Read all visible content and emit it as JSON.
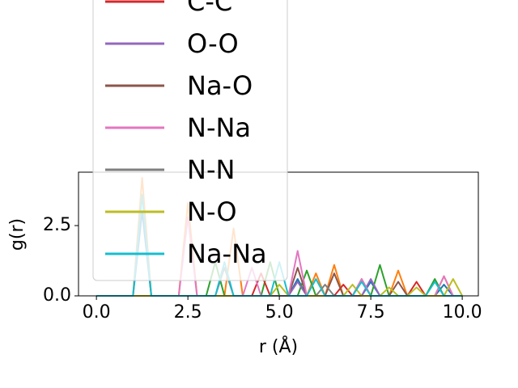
{
  "chart_data": {
    "type": "line",
    "xlabel": "r (Å)",
    "ylabel": "g(r)",
    "xlim": [
      -0.49,
      10.44
    ],
    "ylim": [
      0,
      4.4
    ],
    "xticks": [
      {
        "value": 0,
        "label": "0.0"
      },
      2.5,
      {
        "value": 5,
        "label": "5.0"
      },
      7.5,
      {
        "value": 10,
        "label": "10.0"
      }
    ],
    "yticks": [
      {
        "value": 0,
        "label": "0.0"
      },
      2.5
    ],
    "grid": false,
    "legend": "upper left",
    "x": [
      0,
      0.25,
      0.5,
      0.75,
      1,
      1.25,
      1.5,
      1.75,
      2,
      2.25,
      2.5,
      2.75,
      3,
      3.25,
      3.5,
      3.75,
      4,
      4.25,
      4.5,
      4.75,
      5,
      5.25,
      5.5,
      5.75,
      6,
      6.25,
      6.5,
      6.75,
      7,
      7.25,
      7.5,
      7.75,
      8,
      8.25,
      8.5,
      8.75,
      9,
      9.25,
      9.5,
      9.75,
      10
    ],
    "series": [
      {
        "color": "#1f77b4",
        "values": [
          0,
          0,
          0,
          0,
          0,
          3.0,
          0,
          0,
          0,
          0,
          0,
          0,
          0,
          0,
          0,
          0,
          0,
          0,
          0,
          0,
          0,
          0,
          0.6,
          0,
          0,
          0,
          0,
          0,
          0,
          0,
          0.5,
          0,
          0,
          0,
          0,
          0,
          0,
          0,
          0.4,
          0,
          0
        ]
      },
      {
        "color": "#ff7f0e",
        "values": [
          0,
          0,
          0,
          0,
          0,
          4.2,
          0,
          0,
          0,
          0,
          3.3,
          0,
          0,
          0,
          0,
          2.4,
          0,
          0,
          0,
          0,
          0,
          0,
          0,
          0,
          0.8,
          0,
          1.1,
          0,
          0,
          0.6,
          0,
          0,
          0,
          0.9,
          0,
          0,
          0,
          0,
          0.7,
          0,
          0
        ]
      },
      {
        "color": "#2ca02c",
        "values": [
          0,
          0,
          0,
          0,
          0,
          0,
          0,
          0,
          0,
          0,
          0,
          0,
          0,
          1.2,
          0,
          0,
          0,
          0,
          0,
          1.2,
          0,
          0,
          0,
          0.9,
          0,
          0,
          0,
          0,
          0,
          0,
          0,
          1.1,
          0,
          0,
          0,
          0,
          0,
          0.6,
          0,
          0,
          0
        ]
      },
      {
        "name": "C-C",
        "color": "#d62728",
        "values": [
          0,
          0,
          0,
          0,
          0,
          0,
          0,
          0,
          0,
          0,
          0,
          0,
          0,
          0,
          0,
          0,
          0,
          0,
          0.8,
          0,
          0,
          0,
          0,
          0,
          0,
          0,
          0,
          0.4,
          0,
          0,
          0,
          0,
          0,
          0,
          0,
          0.5,
          0,
          0,
          0,
          0,
          0
        ]
      },
      {
        "name": "O-O",
        "color": "#9467bd",
        "values": [
          0,
          0,
          0,
          0,
          0,
          0,
          0,
          0,
          0,
          0,
          0,
          0,
          0,
          0,
          0,
          0,
          0,
          0,
          0,
          0,
          0,
          0,
          0.5,
          0,
          0,
          0,
          0,
          0,
          0,
          0,
          0.6,
          0,
          0,
          0,
          0,
          0,
          0,
          0,
          0,
          0,
          0
        ]
      },
      {
        "name": "Na-O",
        "color": "#8c564b",
        "values": [
          0,
          0,
          0,
          0,
          0,
          0,
          0,
          0,
          0,
          0,
          0,
          0,
          0,
          0,
          0,
          0,
          0,
          0,
          0,
          0,
          0,
          0,
          1.0,
          0,
          0,
          0,
          0.8,
          0,
          0,
          0,
          0,
          0,
          0,
          0.5,
          0,
          0,
          0,
          0,
          0,
          0,
          0
        ]
      },
      {
        "name": "N-Na",
        "color": "#e377c2",
        "values": [
          0,
          0,
          0,
          0,
          0,
          0,
          0,
          0,
          0,
          0,
          2.8,
          0,
          0,
          0,
          0,
          0,
          0,
          1.0,
          0,
          0,
          0,
          0,
          1.6,
          0,
          0,
          0,
          0,
          0,
          0,
          0.6,
          0,
          0,
          0,
          0,
          0,
          0,
          0,
          0,
          0.7,
          0,
          0
        ]
      },
      {
        "name": "N-N",
        "color": "#7f7f7f",
        "values": [
          0,
          0,
          0,
          0,
          0,
          0,
          0,
          0,
          0,
          0,
          0,
          0,
          0,
          0,
          1.0,
          0,
          0,
          0,
          0,
          0,
          0,
          0,
          0,
          0,
          0,
          0.4,
          0,
          0,
          0,
          0,
          0,
          0,
          0,
          0,
          0,
          0,
          0,
          0,
          0,
          0,
          0
        ]
      },
      {
        "name": "N-O",
        "color": "#bcbd22",
        "values": [
          0,
          0,
          0,
          0,
          0,
          0,
          0,
          0,
          0,
          0,
          0,
          0,
          0,
          0,
          0,
          0,
          0,
          0,
          0,
          0,
          0.4,
          0,
          0,
          0,
          0,
          0,
          0,
          0,
          0.4,
          0,
          0,
          0,
          0.3,
          0,
          0,
          0.3,
          0,
          0,
          0,
          0.6,
          0
        ]
      },
      {
        "name": "Na-Na",
        "color": "#17becf",
        "values": [
          0,
          0,
          0,
          0,
          0,
          3.6,
          0,
          0,
          0,
          0,
          0,
          0,
          0,
          0,
          1.2,
          0,
          0,
          0,
          0,
          0,
          1.2,
          0,
          0,
          0,
          0.6,
          0,
          0,
          0,
          0,
          0.5,
          0,
          0,
          0,
          0,
          0,
          0,
          0,
          0.5,
          0,
          0,
          0
        ]
      }
    ]
  }
}
